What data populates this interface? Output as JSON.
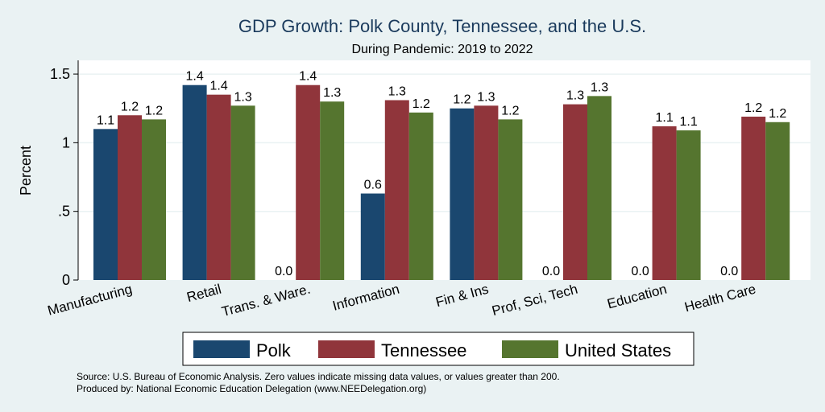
{
  "chart_data": {
    "type": "bar",
    "title": "GDP Growth: Polk County, Tennessee, and the U.S.",
    "subtitle": "During Pandemic: 2019 to 2022",
    "ylabel": "Percent",
    "xlabel": "",
    "ylim": [
      0,
      1.6
    ],
    "yticks": [
      0,
      0.5,
      1,
      1.5
    ],
    "ytick_labels": [
      "0",
      ".5",
      "1",
      "1.5"
    ],
    "grid": true,
    "legend_position": "bottom",
    "categories": [
      "Manufacturing",
      "Retail",
      "Trans. & Ware.",
      "Information",
      "Fin & Ins",
      "Prof, Sci, Tech",
      "Education",
      "Health Care"
    ],
    "series": [
      {
        "name": "Polk",
        "color": "#1a476f",
        "values": [
          1.1,
          1.42,
          0.0,
          0.63,
          1.25,
          0.0,
          0.0,
          0.0
        ],
        "labels": [
          "1.1",
          "1.4",
          "0.0",
          "0.6",
          "1.2",
          "0.0",
          "0.0",
          "0.0"
        ]
      },
      {
        "name": "Tennessee",
        "color": "#90353b",
        "values": [
          1.2,
          1.35,
          1.42,
          1.31,
          1.27,
          1.28,
          1.12,
          1.19
        ],
        "labels": [
          "1.2",
          "1.4",
          "1.4",
          "1.3",
          "1.3",
          "1.3",
          "1.1",
          "1.2"
        ]
      },
      {
        "name": "United States",
        "color": "#55752f",
        "values": [
          1.17,
          1.27,
          1.3,
          1.22,
          1.17,
          1.34,
          1.09,
          1.15
        ],
        "labels": [
          "1.2",
          "1.3",
          "1.3",
          "1.2",
          "1.2",
          "1.3",
          "1.1",
          "1.2"
        ]
      }
    ],
    "notes": [
      "Source: U.S. Bureau of Economic Analysis. Zero values indicate missing data values, or values greater than 200.",
      "Produced by: National Economic Education Delegation (www.NEEDelegation.org)"
    ]
  }
}
